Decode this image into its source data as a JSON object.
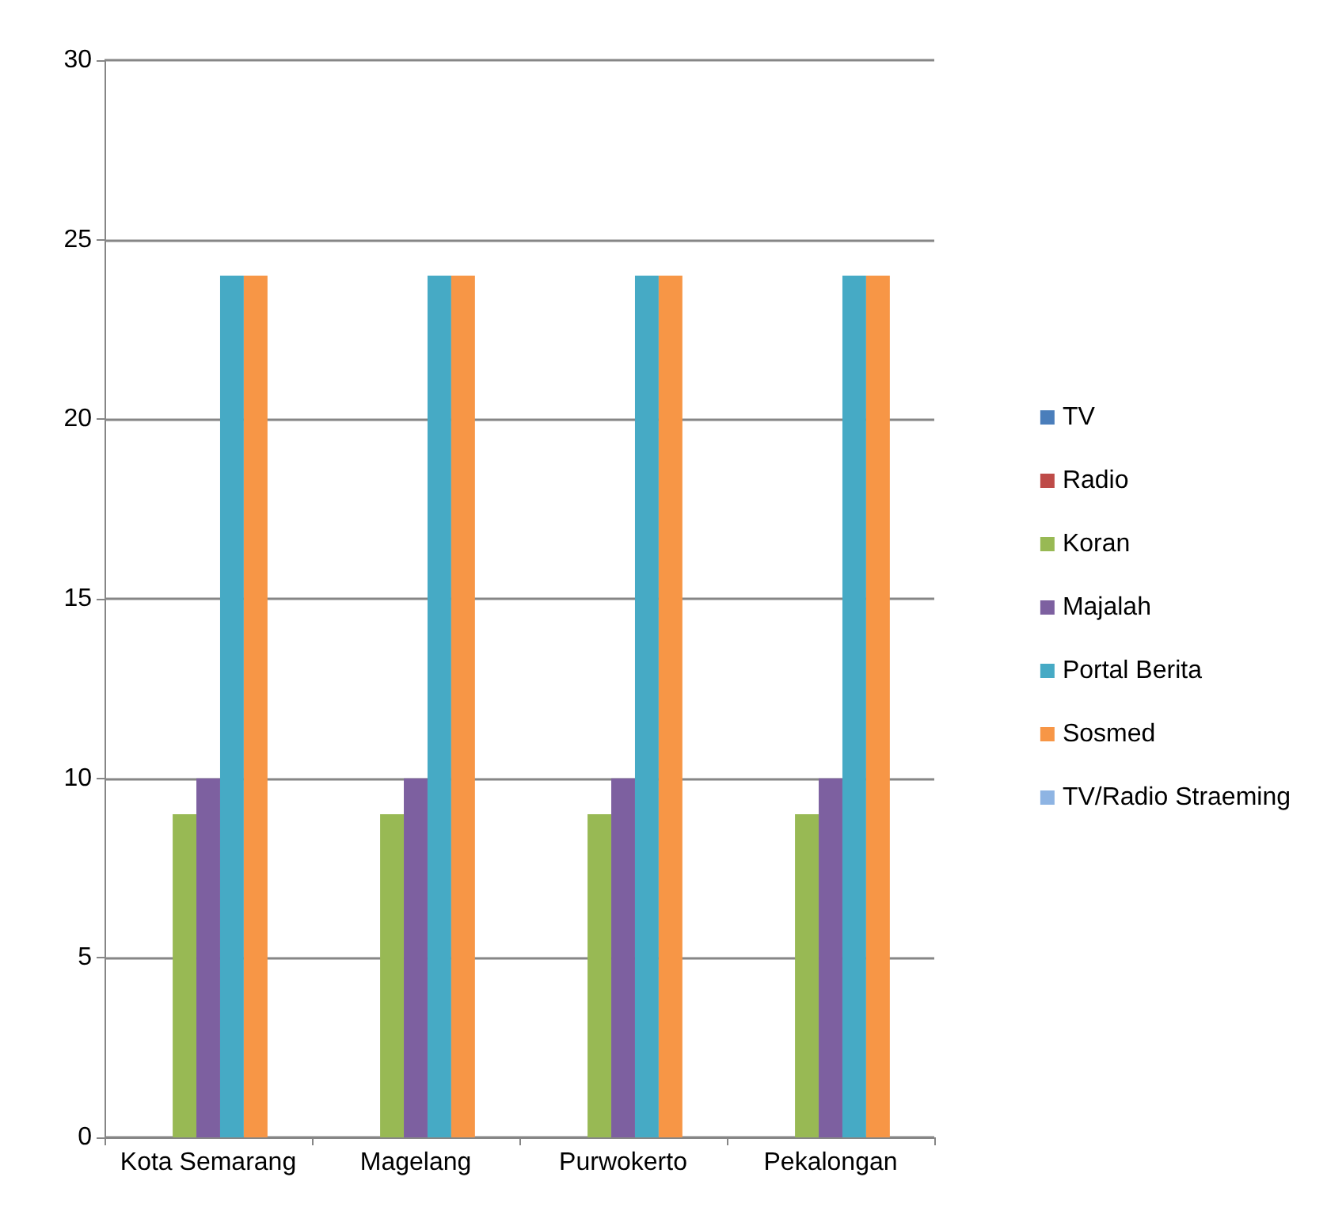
{
  "chart_data": {
    "type": "bar",
    "categories": [
      "Kota Semarang",
      "Magelang",
      "Purwokerto",
      "Pekalongan"
    ],
    "series": [
      {
        "name": "TV",
        "color": "#4a7ebb",
        "values": [
          0,
          0,
          0,
          0
        ]
      },
      {
        "name": "Radio",
        "color": "#be4b48",
        "values": [
          0,
          0,
          0,
          0
        ]
      },
      {
        "name": "Koran",
        "color": "#98b954",
        "values": [
          9,
          9,
          9,
          9
        ]
      },
      {
        "name": "Majalah",
        "color": "#7d60a0",
        "values": [
          10,
          10,
          10,
          10
        ]
      },
      {
        "name": "Portal Berita",
        "color": "#46aac5",
        "values": [
          24,
          24,
          24,
          24
        ]
      },
      {
        "name": "Sosmed",
        "color": "#f79646",
        "values": [
          24,
          24,
          24,
          24
        ]
      },
      {
        "name": "TV/Radio Straeming",
        "color": "#8eb4e3",
        "values": [
          0,
          0,
          0,
          0
        ]
      }
    ],
    "ylim": [
      0,
      30
    ],
    "yticks": [
      0,
      5,
      10,
      15,
      20,
      25,
      30
    ],
    "grid": "y",
    "legend": "right"
  }
}
